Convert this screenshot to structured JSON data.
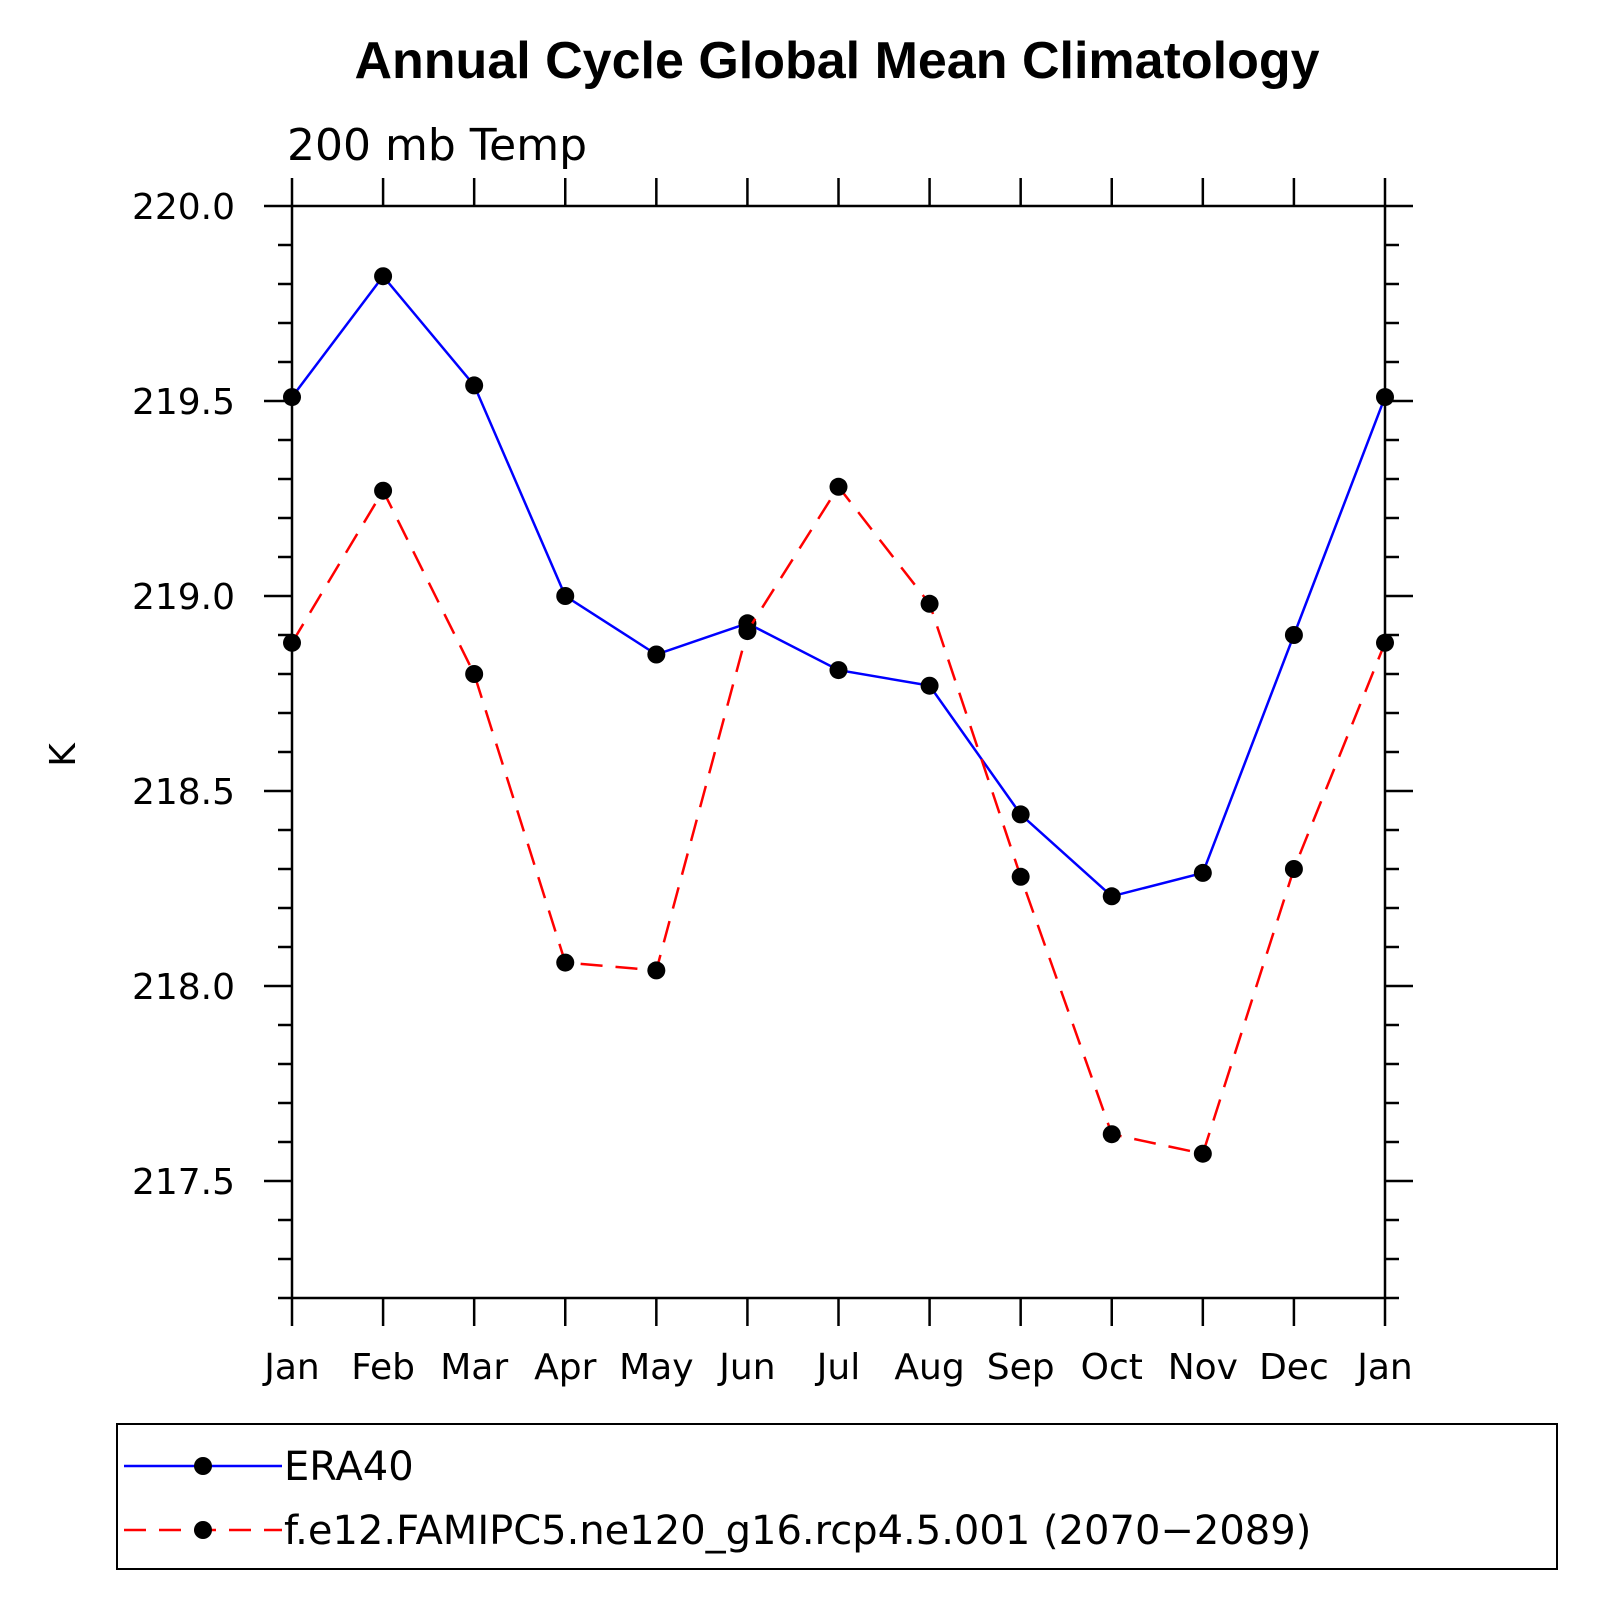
{
  "chart_data": {
    "type": "line",
    "title": "Annual Cycle Global Mean Climatology",
    "subtitle": "200 mb Temp",
    "ylabel": "K",
    "xlabel": "",
    "categories": [
      "Jan",
      "Feb",
      "Mar",
      "Apr",
      "May",
      "Jun",
      "Jul",
      "Aug",
      "Sep",
      "Oct",
      "Nov",
      "Dec",
      "Jan"
    ],
    "ylim": [
      217.2,
      220.0
    ],
    "yticks": [
      217.5,
      218.0,
      218.5,
      219.0,
      219.5,
      220.0
    ],
    "ytick_labels": [
      "217.5",
      "218.0",
      "218.5",
      "219.0",
      "219.5",
      "220.0"
    ],
    "series": [
      {
        "name": "ERA40",
        "color": "#0000ff",
        "line_style": "solid",
        "marker": "filled-circle",
        "values": [
          219.51,
          219.82,
          219.54,
          219.0,
          218.85,
          218.93,
          218.81,
          218.77,
          218.44,
          218.23,
          218.29,
          218.9,
          219.51
        ]
      },
      {
        "name": "f.e12.FAMIPC5.ne120_g16.rcp4.5.001 (2070−2089)",
        "color": "#ff0000",
        "line_style": "dashed",
        "marker": "filled-circle",
        "values": [
          218.88,
          219.27,
          218.8,
          218.06,
          218.04,
          218.91,
          219.28,
          218.98,
          218.28,
          217.62,
          217.57,
          218.3,
          218.88
        ]
      }
    ],
    "legend_position": "bottom"
  }
}
